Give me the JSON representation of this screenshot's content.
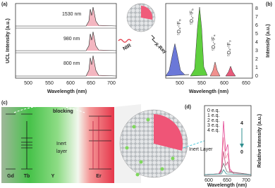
{
  "panel_a": {
    "label": "(a)",
    "y_label": "UCL Intensity (a.u.)",
    "x_label": "Wavelength (nm)",
    "x_ticks": [
      "500",
      "550",
      "600",
      "650",
      "700"
    ],
    "traces": [
      "1530 nm",
      "980 nm",
      "800 nm"
    ]
  },
  "inset": {
    "nir": "NIR",
    "xray": "X-Ray"
  },
  "panel_b": {
    "label": "(b)",
    "y_label": "Intensity (a.u.)",
    "x_label": "Wavelength (nm)",
    "x_ticks": [
      "500",
      "550",
      "600",
      "650"
    ],
    "y_ticks": [
      "0",
      "1",
      "2",
      "3",
      "4",
      "5",
      "6",
      "7",
      "8"
    ],
    "transitions": [
      "⁵D₄-⁷F₆",
      "⁵D₄-⁷F₅",
      "⁵D₄-⁷F₄",
      "⁵D₄-⁷F₃"
    ]
  },
  "panel_c": {
    "label": "(c)",
    "blocking": "blocking",
    "inert_layer": [
      "Inert",
      "layer"
    ],
    "ions": [
      "Gd",
      "Tb",
      "Y",
      "Er"
    ]
  },
  "panel_d": {
    "label": "(d)",
    "legend": [
      "0 e.q.",
      "1 e.q.",
      "2 e.q.",
      "3 e.q.",
      "4 e.q."
    ],
    "inert_layer": "Inert Layer",
    "arrow_top": "4",
    "arrow_bottom": "0",
    "x_ticks": [
      "600",
      "650",
      "700"
    ],
    "x_label": "Wavelength (nm)",
    "y_label": "Relative Intensity (a.u.)"
  }
}
